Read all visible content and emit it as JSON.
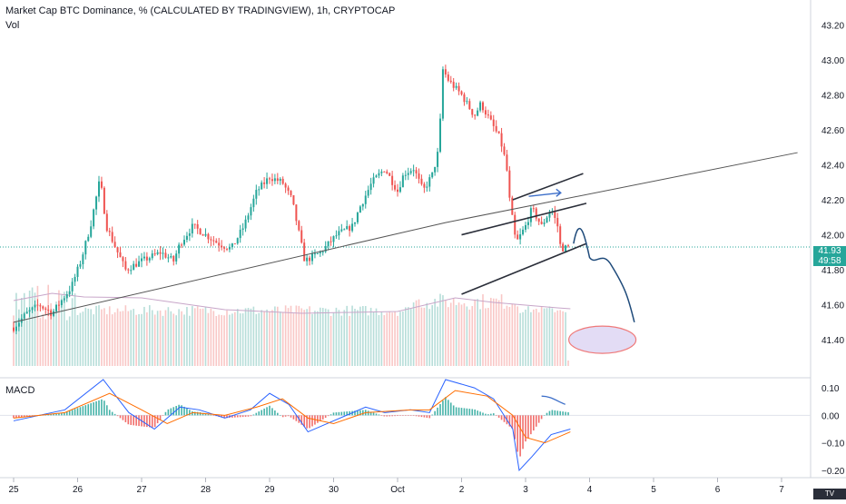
{
  "header": {
    "title": "Market Cap BTC Dominance, % (CALCULATED BY TRADINGVIEW), 1h, CRYPTOCAP",
    "vol_label": "Vol",
    "macd_label": "MACD"
  },
  "last_price": {
    "value": "41.93",
    "countdown": "49:58"
  },
  "watermark": "TV",
  "colors": {
    "up": "#26a69a",
    "down": "#ef5350",
    "drawing": "#131722",
    "arrow": "#1e4a7a",
    "macd": "#2962ff",
    "signal": "#ff6d00"
  },
  "chart_data": [
    {
      "type": "candlestick",
      "title": "Market Cap BTC Dominance, % (CALCULATED BY TRADINGVIEW), 1h, CRYPTOCAP",
      "timeframe": "1h",
      "x_ticks": [
        "25",
        "26",
        "27",
        "28",
        "29",
        "30",
        "Oct",
        "2",
        "3",
        "4",
        "5",
        "6",
        "7"
      ],
      "x_range": [
        25.0,
        37.6
      ],
      "y_ticks": [
        "43.20",
        "43.00",
        "42.80",
        "42.60",
        "42.40",
        "42.20",
        "42.00",
        "41.80",
        "41.60",
        "41.40"
      ],
      "ylim": [
        41.25,
        43.27
      ],
      "last_value": 41.93,
      "close_path": [
        [
          25.0,
          41.47
        ],
        [
          25.2,
          41.55
        ],
        [
          25.4,
          41.6
        ],
        [
          25.6,
          41.55
        ],
        [
          25.9,
          41.7
        ],
        [
          26.05,
          41.85
        ],
        [
          26.2,
          42.05
        ],
        [
          26.35,
          42.32
        ],
        [
          26.45,
          42.05
        ],
        [
          26.6,
          41.92
        ],
        [
          26.75,
          41.8
        ],
        [
          27.0,
          41.85
        ],
        [
          27.3,
          41.9
        ],
        [
          27.5,
          41.85
        ],
        [
          27.6,
          41.95
        ],
        [
          27.8,
          42.05
        ],
        [
          28.0,
          42.0
        ],
        [
          28.2,
          41.95
        ],
        [
          28.4,
          41.92
        ],
        [
          28.6,
          42.05
        ],
        [
          28.8,
          42.25
        ],
        [
          29.0,
          42.33
        ],
        [
          29.2,
          42.3
        ],
        [
          29.35,
          42.2
        ],
        [
          29.55,
          41.85
        ],
        [
          29.8,
          41.9
        ],
        [
          30.05,
          42.0
        ],
        [
          30.3,
          42.05
        ],
        [
          30.4,
          42.15
        ],
        [
          30.6,
          42.3
        ],
        [
          30.8,
          42.38
        ],
        [
          31.0,
          42.25
        ],
        [
          31.1,
          42.35
        ],
        [
          31.25,
          42.38
        ],
        [
          31.4,
          42.25
        ],
        [
          31.55,
          42.35
        ],
        [
          31.65,
          42.5
        ],
        [
          31.7,
          42.95
        ],
        [
          31.8,
          42.88
        ],
        [
          32.0,
          42.8
        ],
        [
          32.2,
          42.68
        ],
        [
          32.3,
          42.75
        ],
        [
          32.45,
          42.65
        ],
        [
          32.6,
          42.55
        ],
        [
          32.7,
          42.4
        ],
        [
          32.75,
          42.2
        ],
        [
          32.85,
          41.95
        ],
        [
          33.0,
          42.05
        ],
        [
          33.1,
          42.15
        ],
        [
          33.25,
          42.05
        ],
        [
          33.4,
          42.15
        ],
        [
          33.5,
          42.05
        ],
        [
          33.55,
          41.92
        ],
        [
          33.68,
          41.93
        ]
      ],
      "drawings": {
        "ascending_channel": {
          "upper": [
            [
              32.8,
              42.2
            ],
            [
              33.9,
              42.35
            ]
          ],
          "middle": [
            [
              32.0,
              42.0
            ],
            [
              33.95,
              42.18
            ]
          ],
          "lower": [
            [
              32.0,
              41.66
            ],
            [
              33.95,
              41.95
            ]
          ]
        },
        "long_trendline": [
          [
            25.0,
            41.5
          ],
          [
            31.75,
            42.07
          ],
          [
            37.25,
            42.47
          ]
        ],
        "projection_ellipse": {
          "x": 34.2,
          "y": 41.4
        },
        "projected_path_end": [
          34.7,
          41.5
        ]
      }
    },
    {
      "type": "bar",
      "title": "Vol",
      "description": "Hourly volume bars colored by candle direction, with a moving-average overlay"
    },
    {
      "type": "line",
      "title": "MACD",
      "y_ticks": [
        "0.10",
        "0.00",
        "−0.10",
        "−0.20"
      ],
      "ylim": [
        -0.22,
        0.13
      ],
      "series": [
        {
          "name": "MACD",
          "points": [
            [
              25.0,
              -0.02
            ],
            [
              25.8,
              0.02
            ],
            [
              26.4,
              0.13
            ],
            [
              26.8,
              0.01
            ],
            [
              27.2,
              -0.05
            ],
            [
              27.6,
              0.03
            ],
            [
              27.9,
              0.02
            ],
            [
              28.3,
              -0.01
            ],
            [
              28.7,
              0.02
            ],
            [
              29.0,
              0.08
            ],
            [
              29.3,
              0.04
            ],
            [
              29.6,
              -0.06
            ],
            [
              29.9,
              -0.03
            ],
            [
              30.2,
              0.0
            ],
            [
              30.5,
              0.03
            ],
            [
              30.8,
              0.01
            ],
            [
              31.2,
              0.02
            ],
            [
              31.5,
              0.01
            ],
            [
              31.75,
              0.13
            ],
            [
              32.2,
              0.1
            ],
            [
              32.5,
              0.06
            ],
            [
              32.8,
              -0.05
            ],
            [
              32.9,
              -0.2
            ],
            [
              33.1,
              -0.15
            ],
            [
              33.4,
              -0.07
            ],
            [
              33.7,
              -0.05
            ]
          ]
        },
        {
          "name": "Signal",
          "points": [
            [
              25.0,
              -0.01
            ],
            [
              25.8,
              0.01
            ],
            [
              26.5,
              0.08
            ],
            [
              27.0,
              0.02
            ],
            [
              27.4,
              -0.03
            ],
            [
              27.8,
              0.01
            ],
            [
              28.3,
              0.0
            ],
            [
              28.8,
              0.03
            ],
            [
              29.2,
              0.06
            ],
            [
              29.6,
              -0.01
            ],
            [
              30.0,
              -0.03
            ],
            [
              30.5,
              0.01
            ],
            [
              31.2,
              0.02
            ],
            [
              31.5,
              0.02
            ],
            [
              31.9,
              0.09
            ],
            [
              32.4,
              0.07
            ],
            [
              32.8,
              0.0
            ],
            [
              33.0,
              -0.08
            ],
            [
              33.3,
              -0.1
            ],
            [
              33.7,
              -0.06
            ]
          ]
        }
      ],
      "histogram": "green/red columns showing MACD minus Signal"
    }
  ]
}
